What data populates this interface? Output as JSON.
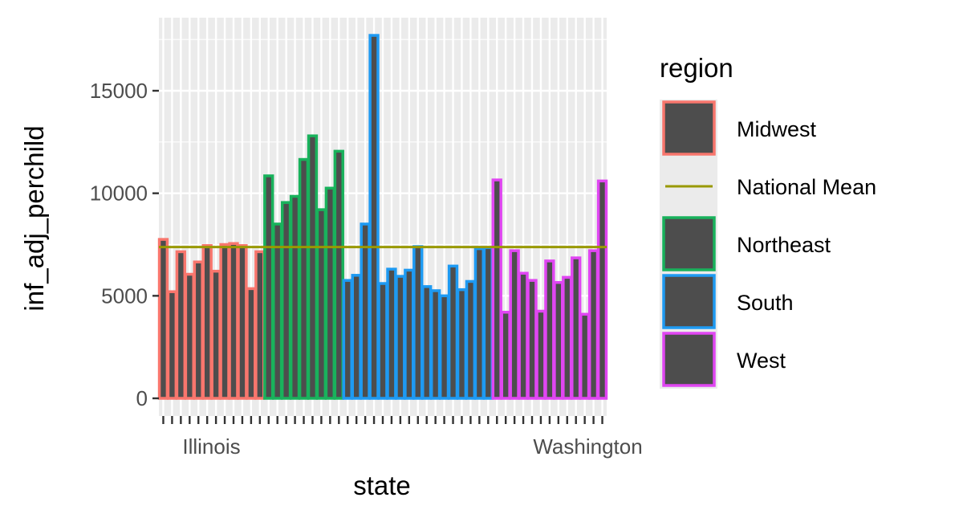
{
  "chart_data": {
    "type": "bar",
    "xlabel": "state",
    "ylabel": "inf_adj_perchild",
    "ylim": [
      0,
      18600
    ],
    "yticks": [
      0,
      5000,
      10000,
      15000
    ],
    "ytick_labels": [
      "0",
      "5000",
      "10000",
      "15000"
    ],
    "national_mean": 7380,
    "grid": true,
    "background": "#ebebeb",
    "bar_fill": "#4d4d4d",
    "legend": {
      "title": "region",
      "position": "right",
      "items": [
        {
          "label": "Midwest",
          "color": "#F8766D",
          "kind": "bar"
        },
        {
          "label": "National Mean",
          "color": "#999900",
          "kind": "line"
        },
        {
          "label": "Northeast",
          "color": "#19B25C",
          "kind": "bar"
        },
        {
          "label": "South",
          "color": "#1E9AF2",
          "kind": "bar"
        },
        {
          "label": "West",
          "color": "#E046F2",
          "kind": "bar"
        }
      ]
    },
    "region_colors": {
      "Midwest": "#F8766D",
      "Northeast": "#19B25C",
      "South": "#1E9AF2",
      "West": "#E046F2"
    },
    "tick_labels_visible": [
      "Illinois",
      "Washington"
    ],
    "series": [
      {
        "name": "Midwest",
        "values": [
          7750,
          5200,
          7150,
          6050,
          6650,
          7450,
          6200,
          7500,
          7550,
          7450,
          5350,
          7150
        ]
      },
      {
        "name": "Northeast",
        "values": [
          10850,
          8500,
          9550,
          9850,
          11650,
          12800,
          9200,
          10250,
          12050
        ]
      },
      {
        "name": "South",
        "values": [
          5750,
          6000,
          8500,
          17700,
          5600,
          6300,
          5950,
          6250,
          7400,
          5450,
          5250,
          5000,
          6450,
          5300,
          5700,
          7300,
          7350
        ]
      },
      {
        "name": "West",
        "values": [
          10650,
          4200,
          7200,
          6100,
          5750,
          4250,
          6700,
          5650,
          5900,
          6850,
          4100,
          7200,
          10600
        ]
      }
    ]
  }
}
